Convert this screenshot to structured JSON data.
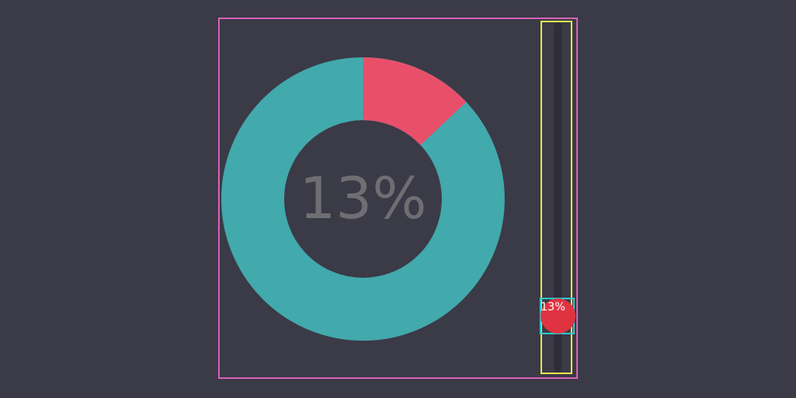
{
  "donut": {
    "value_percent": 13,
    "center_label": "13%",
    "filled_color": "#e8506a",
    "remaining_color": "#42a9ac"
  },
  "slider": {
    "value_percent": 13,
    "handle_label": "13%",
    "handle_color": "#e03342",
    "track_color": "#2f2e38"
  },
  "frames": {
    "outer_color": "#d662b6",
    "slider_color": "#e6e14a",
    "handle_box_color": "#2ec7c9"
  }
}
